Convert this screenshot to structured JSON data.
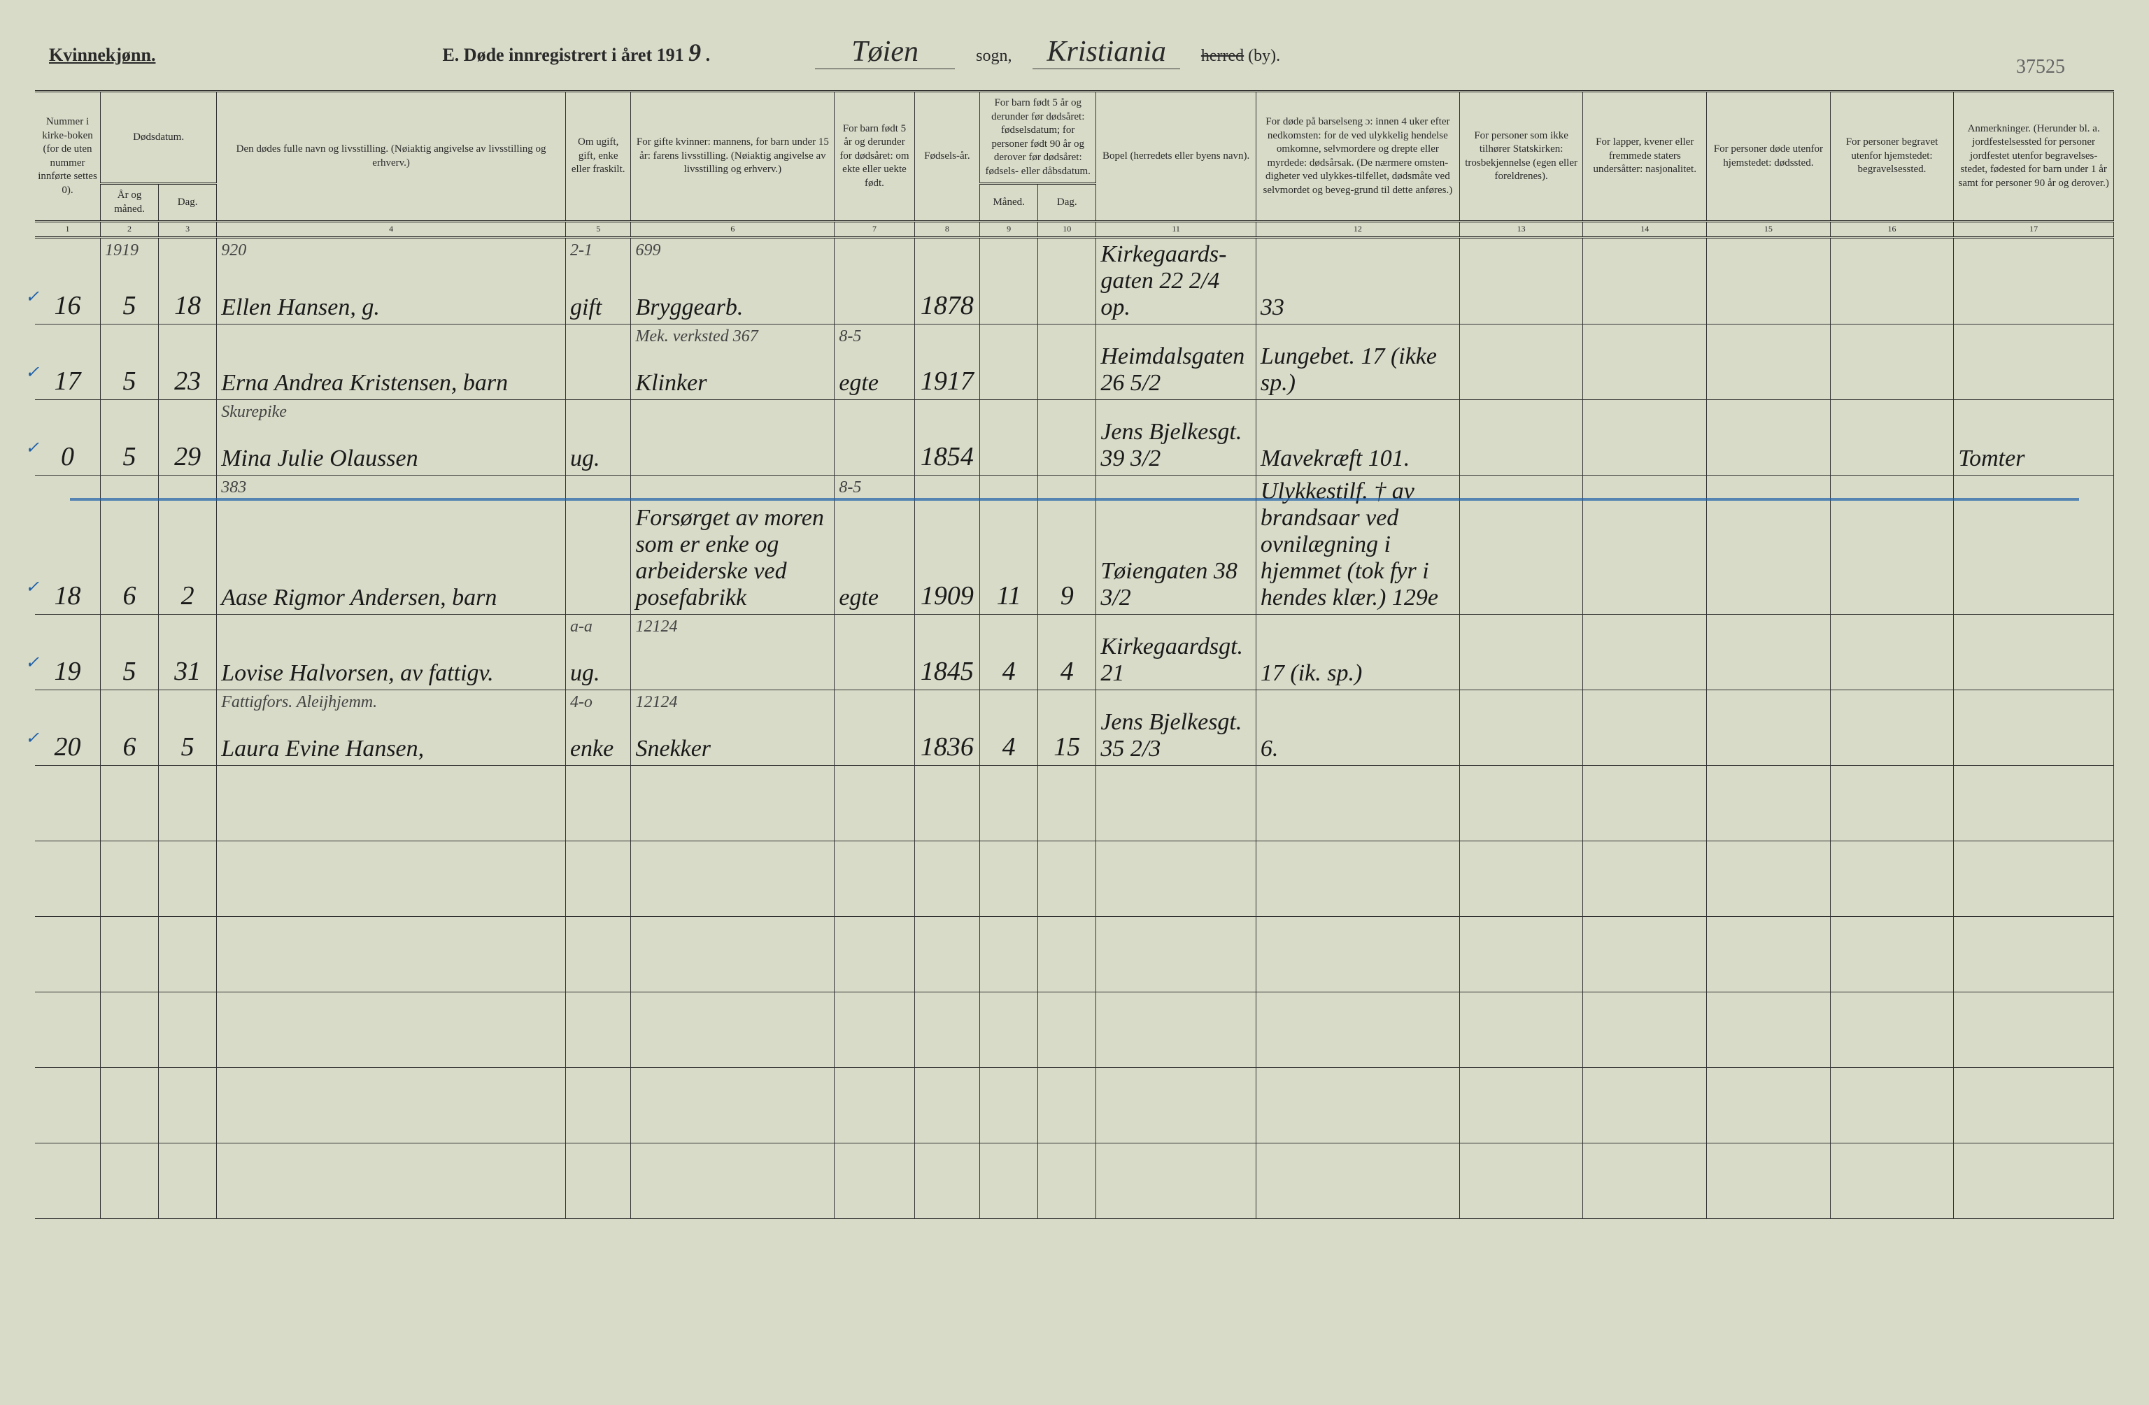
{
  "page_number": "37525",
  "header": {
    "gender_label": "Kvinnekjønn.",
    "title_prefix": "E. Døde innregistrert i året 191",
    "year_suffix": "9",
    "sogn_value": "Tøien",
    "sogn_label": "sogn,",
    "herred_value": "Kristiania",
    "herred_label_struck": "herred",
    "by_label": "(by)."
  },
  "columns": {
    "c1": "Nummer i kirke-boken (for de uten nummer innførte settes 0).",
    "c2a": "Dødsdatum.",
    "c2": "År og måned.",
    "c3": "Dag.",
    "c4": "Den dødes fulle navn og livsstilling. (Nøiaktig angivelse av livsstilling og erhverv.)",
    "c5": "Om ugift, gift, enke eller fraskilt.",
    "c6": "For gifte kvinner: mannens, for barn under 15 år: farens livsstilling. (Nøiaktig angivelse av livsstilling og erhverv.)",
    "c7": "For barn født 5 år og derunder for dødsåret: om ekte eller uekte født.",
    "c8": "Fødsels-år.",
    "c9a": "For barn født 5 år og derunder før dødsåret: fødselsdatum; for personer født 90 år og derover før dødsåret: fødsels- eller dåbsdatum.",
    "c9": "Måned.",
    "c10": "Dag.",
    "c11": "Bopel (herredets eller byens navn).",
    "c12": "For døde på barselseng ɔ: innen 4 uker efter nedkomsten: for de ved ulykkelig hendelse omkomne, selvmordere og drepte eller myrdede: dødsårsak. (De nærmere omsten-digheter ved ulykkes-tilfellet, dødsmåte ved selvmordet og beveg-grund til dette anføres.)",
    "c13": "For personer som ikke tilhører Statskirken: trosbekjennelse (egen eller foreldrenes).",
    "c14": "For lapper, kvener eller fremmede staters undersåtter: nasjonalitet.",
    "c15": "For personer døde utenfor hjemstedet: dødssted.",
    "c16": "For personer begravet utenfor hjemstedet: begravelsessted.",
    "c17": "Anmerkninger. (Herunder bl. a. jordfestelsessted for personer jordfestet utenfor begravelses-stedet, fødested for barn under 1 år samt for personer 90 år og derover.)"
  },
  "colnums": [
    "1",
    "2",
    "3",
    "4",
    "5",
    "6",
    "7",
    "8",
    "9",
    "10",
    "11",
    "12",
    "13",
    "14",
    "15",
    "16",
    "17"
  ],
  "rows": [
    {
      "n": "16",
      "year_above": "1919",
      "month": "5",
      "day": "18",
      "name": "Ellen Hansen, g.",
      "name_above": "920",
      "status": "gift",
      "status_above": "2-1",
      "occ": "Bryggearb.",
      "occ_above": "699",
      "legit": "",
      "birth": "1878",
      "bm": "",
      "bd": "",
      "addr": "Kirkegaards-gaten 22 2/4 op.",
      "cause": "33",
      "c13": "",
      "c14": "",
      "c15": "",
      "c16": "",
      "c17": ""
    },
    {
      "n": "17",
      "month": "5",
      "day": "23",
      "name": "Erna Andrea Kristensen, barn",
      "status": "",
      "occ": "Klinker",
      "occ_above": "Mek. verksted 367",
      "legit": "egte",
      "legit_above": "8-5",
      "birth": "1917",
      "bm": "",
      "bd": "",
      "addr": "Heimdalsgaten 26 5/2",
      "cause": "Lungebet. 17 (ikke sp.)",
      "c13": "",
      "c14": "",
      "c15": "",
      "c16": "",
      "c17": ""
    },
    {
      "n": "0",
      "month": "5",
      "day": "29",
      "name": "Mina Julie Olaussen",
      "name_above": "Skurepike",
      "status": "ug.",
      "occ": "",
      "legit": "",
      "birth": "1854",
      "bm": "",
      "bd": "",
      "addr": "Jens Bjelkesgt. 39 3/2",
      "cause": "Mavekræft 101.",
      "c13": "",
      "c14": "",
      "c15": "",
      "c16": "",
      "c17": "Tomter"
    },
    {
      "n": "18",
      "month": "6",
      "day": "2",
      "name": "Aase Rigmor Andersen, barn",
      "name_above": "383",
      "status": "",
      "occ": "Forsørget av moren som er enke og arbeiderske ved posefabrikk",
      "occ_above": "",
      "legit": "egte",
      "legit_above": "8-5",
      "birth": "1909",
      "bm": "11",
      "bd": "9",
      "addr": "Tøiengaten 38 3/2",
      "cause": "Ulykkestilf. † av brandsaar ved ovnilægning i hjemmet (tok fyr i hendes klær.) 129e",
      "c13": "",
      "c14": "",
      "c15": "",
      "c16": "",
      "c17": ""
    },
    {
      "n": "19",
      "month": "5",
      "day": "31",
      "name": "Lovise Halvorsen, av fattigv.",
      "status": "ug.",
      "status_above": "a-a",
      "occ": "",
      "occ_above": "12124",
      "legit": "",
      "birth": "1845",
      "bm": "4",
      "bd": "4",
      "addr": "Kirkegaardsgt. 21",
      "cause": "17 (ik. sp.)",
      "c13": "",
      "c14": "",
      "c15": "",
      "c16": "",
      "c17": ""
    },
    {
      "n": "20",
      "month": "6",
      "day": "5",
      "name": "Laura Evine Hansen,",
      "name_above": "Fattigfors. Aleijhjemm.",
      "status": "enke",
      "status_above": "4-o",
      "occ": "Snekker",
      "occ_above": "12124",
      "legit": "",
      "birth": "1836",
      "bm": "4",
      "bd": "15",
      "addr": "Jens Bjelkesgt. 35 2/3",
      "cause": "6.",
      "c13": "",
      "c14": "",
      "c15": "",
      "c16": "",
      "c17": ""
    }
  ],
  "empty_rows": 6
}
